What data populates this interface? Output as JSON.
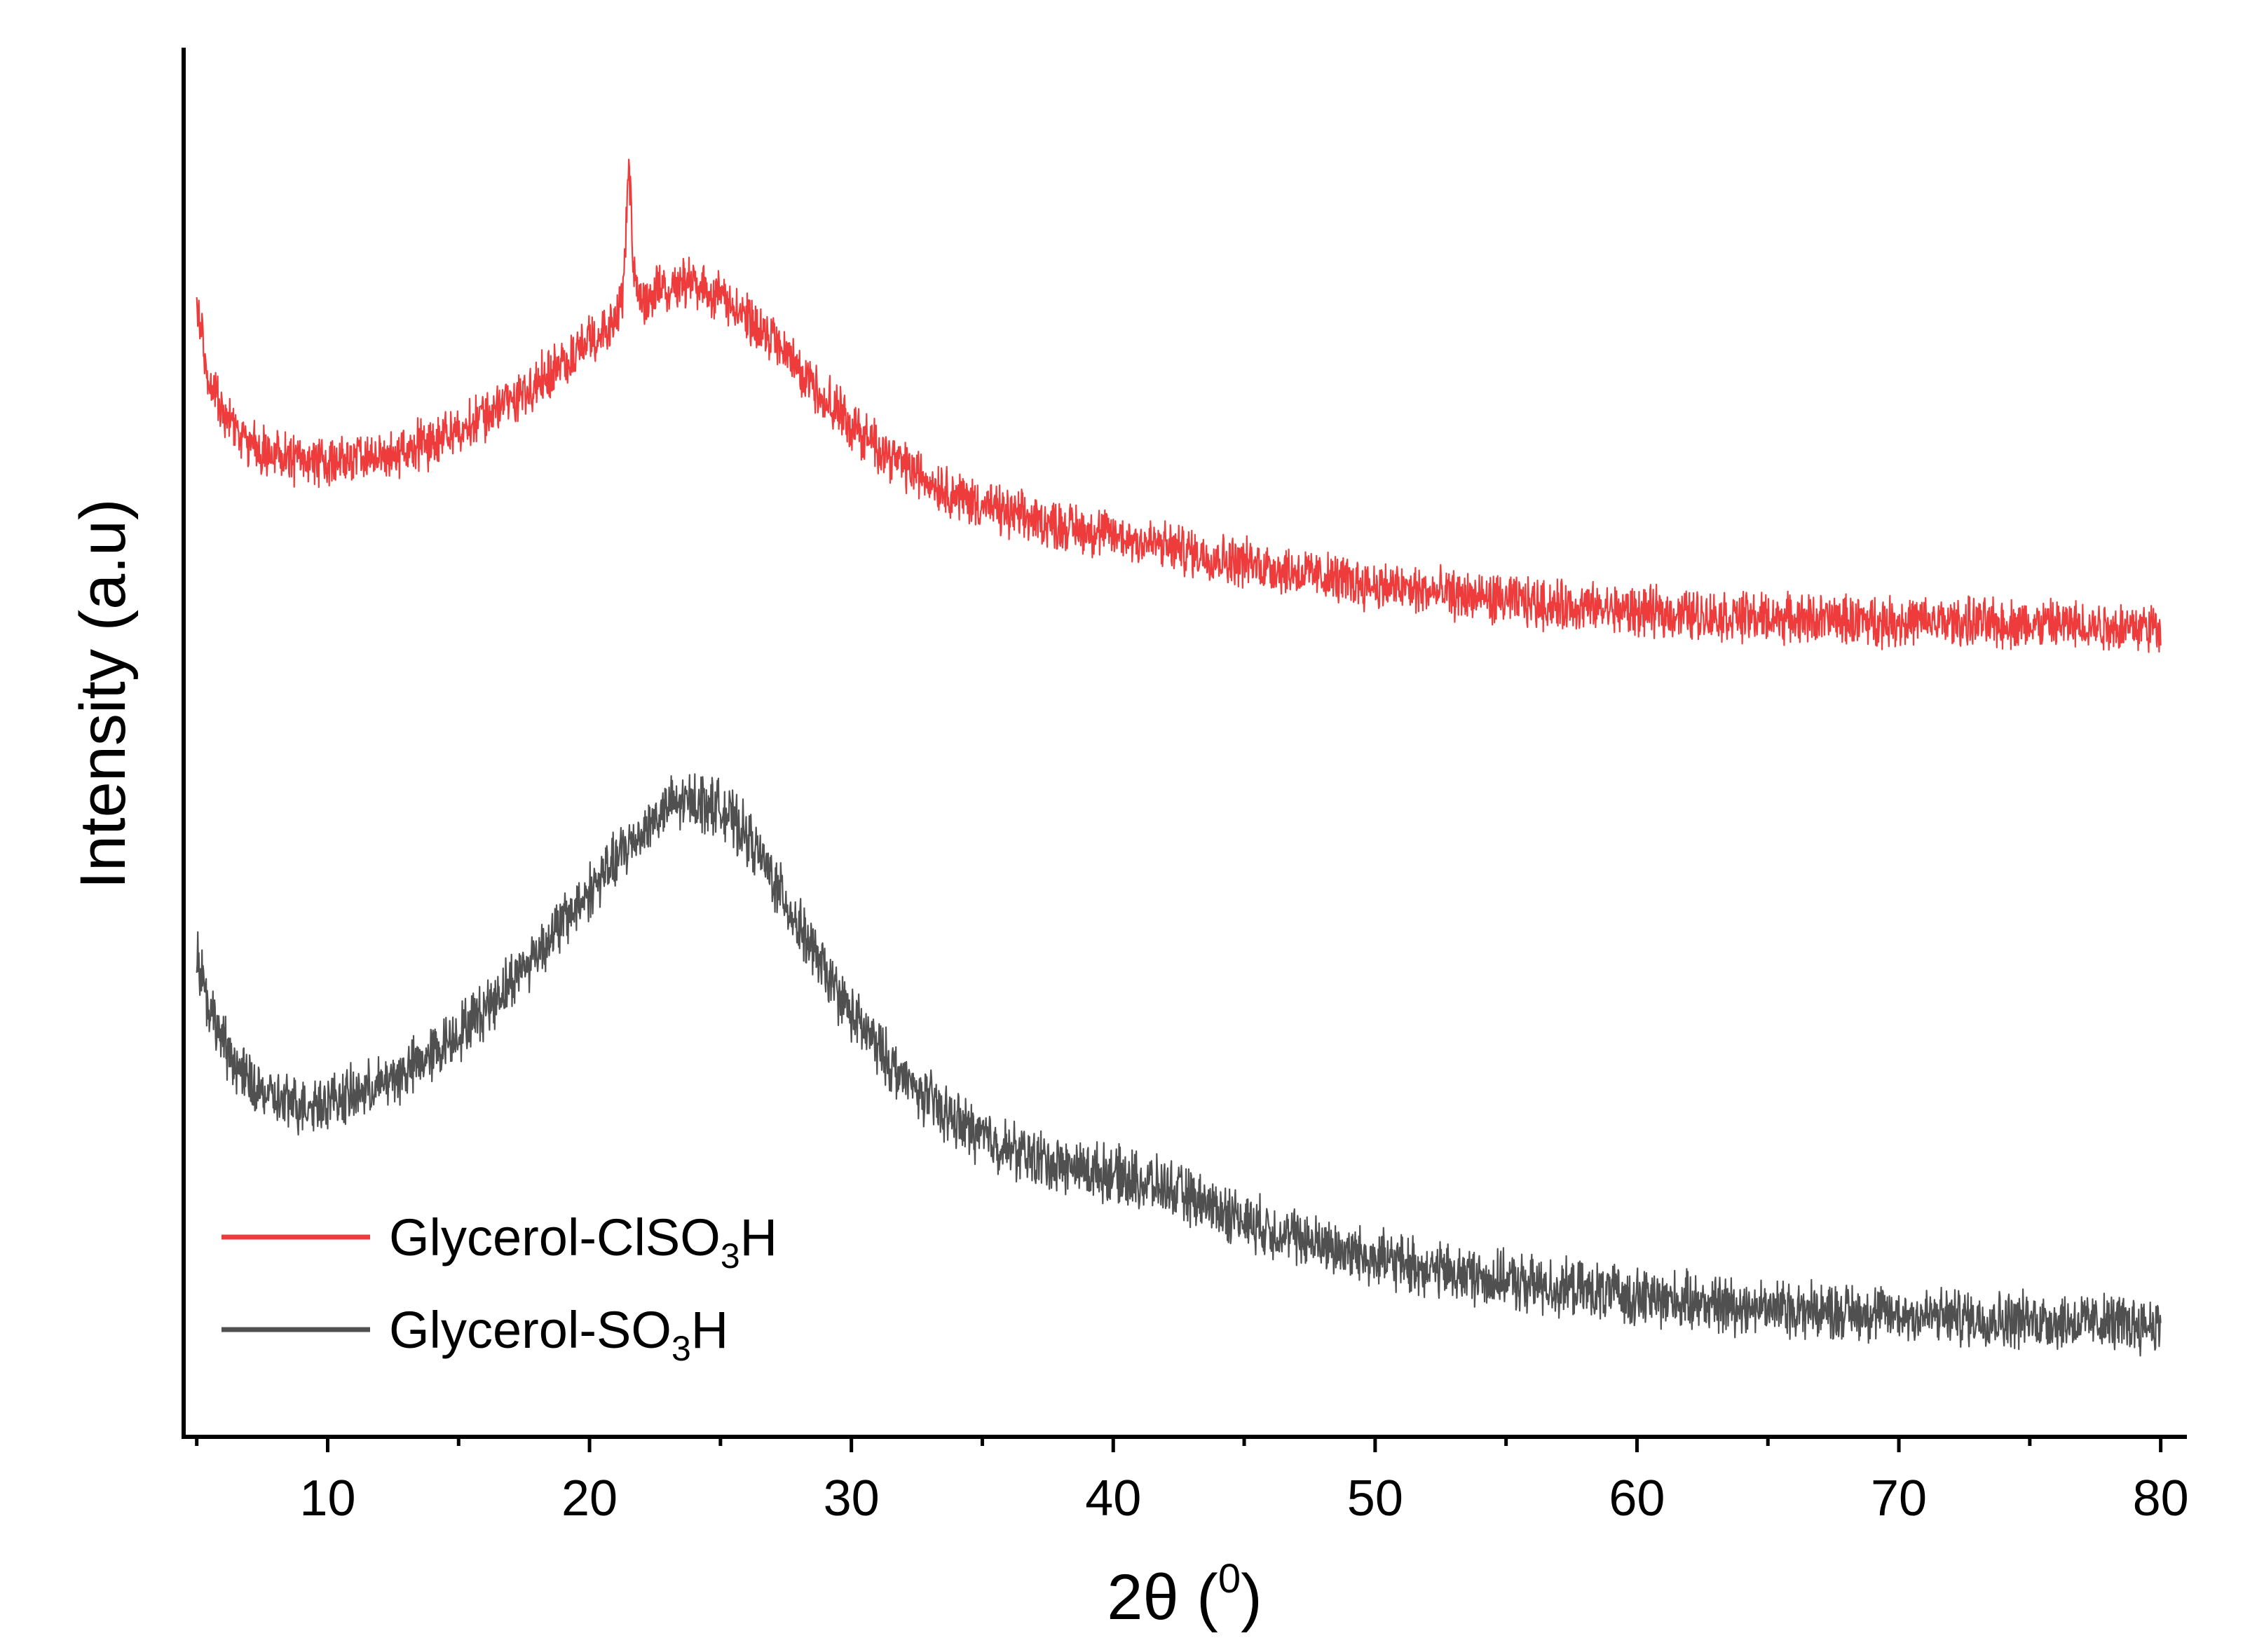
{
  "chart_data": {
    "type": "line",
    "title": "",
    "xlabel": "2θ (",
    "xlabel_superscript": "0",
    "xlabel_close": ")",
    "ylabel": "Intensity (a.u)",
    "xlim": [
      4.5,
      81
    ],
    "ylim": [
      0,
      100
    ],
    "x_ticks_major": [
      10,
      20,
      30,
      40,
      50,
      60,
      70,
      80
    ],
    "x_ticks_minor": [
      5,
      15,
      25,
      35,
      45,
      55,
      65,
      75
    ],
    "x_tick_labels": [
      "10",
      "20",
      "30",
      "40",
      "50",
      "60",
      "70",
      "80"
    ],
    "y_tick_labels_shown": false,
    "grid": false,
    "legend_position": "bottom-left",
    "series": [
      {
        "name": "Glycerol-ClSO3H",
        "legend_main": "Glycerol-ClSO",
        "legend_sub": "3",
        "legend_tail": "H",
        "color": "#ee3b3b",
        "noise": 1.4,
        "x": [
          5,
          5.5,
          6,
          6.5,
          7,
          8,
          9,
          10,
          11,
          12,
          13,
          14,
          15,
          16,
          17,
          18,
          19,
          20,
          20.5,
          21,
          21.3,
          21.5,
          21.7,
          22,
          22.5,
          23,
          23.5,
          24,
          25,
          26,
          27,
          28,
          29,
          30,
          32,
          34,
          36,
          38,
          40,
          42,
          44,
          46,
          48,
          50,
          52,
          55,
          58,
          60,
          63,
          66,
          70,
          75,
          80
        ],
        "y": [
          81,
          76,
          73.5,
          72.3,
          71.3,
          70.6,
          70.3,
          70.2,
          70.3,
          70.5,
          71,
          71.6,
          72.5,
          73.5,
          74.6,
          75.9,
          77.3,
          78.9,
          79.8,
          80.6,
          82.5,
          92,
          83,
          81.4,
          82.3,
          82.8,
          83.1,
          83,
          82,
          80.6,
          78.8,
          76.8,
          74.8,
          72.8,
          69.9,
          67.8,
          66.4,
          65.6,
          64.9,
          64.1,
          63.3,
          62.6,
          61.9,
          61.3,
          60.8,
          60.2,
          59.7,
          59.4,
          59.1,
          58.9,
          58.7,
          58.5,
          58.3
        ]
      },
      {
        "name": "Glycerol-SO3H",
        "legend_main": "Glycerol-SO",
        "legend_sub": "3",
        "legend_tail": "H",
        "color": "#505050",
        "noise": 1.6,
        "x": [
          5,
          5.5,
          6,
          6.5,
          7,
          8,
          9,
          10,
          11,
          12,
          13,
          14,
          15,
          16,
          17,
          18,
          19,
          20,
          21,
          22,
          23,
          24,
          25,
          26,
          27,
          28,
          29,
          30,
          32,
          34,
          36,
          38,
          40,
          42,
          44,
          46,
          48,
          50,
          52,
          55,
          58,
          60,
          63,
          66,
          70,
          75,
          80
        ],
        "y": [
          35,
          30.8,
          28.4,
          26.8,
          25.4,
          24.2,
          23.9,
          24.2,
          24.6,
          25.3,
          26.3,
          27.6,
          29.1,
          30.8,
          32.8,
          34.9,
          37.1,
          39.3,
          41.5,
          43.6,
          45.3,
          45.9,
          45.3,
          43.3,
          40.2,
          36.7,
          33.4,
          30.4,
          25.7,
          22.7,
          20.7,
          19.5,
          18.9,
          17.9,
          16.4,
          14.9,
          13.8,
          12.9,
          12.1,
          11.2,
          10.5,
          10.1,
          9.6,
          9.2,
          8.8,
          8.4,
          8.1
        ]
      }
    ]
  }
}
